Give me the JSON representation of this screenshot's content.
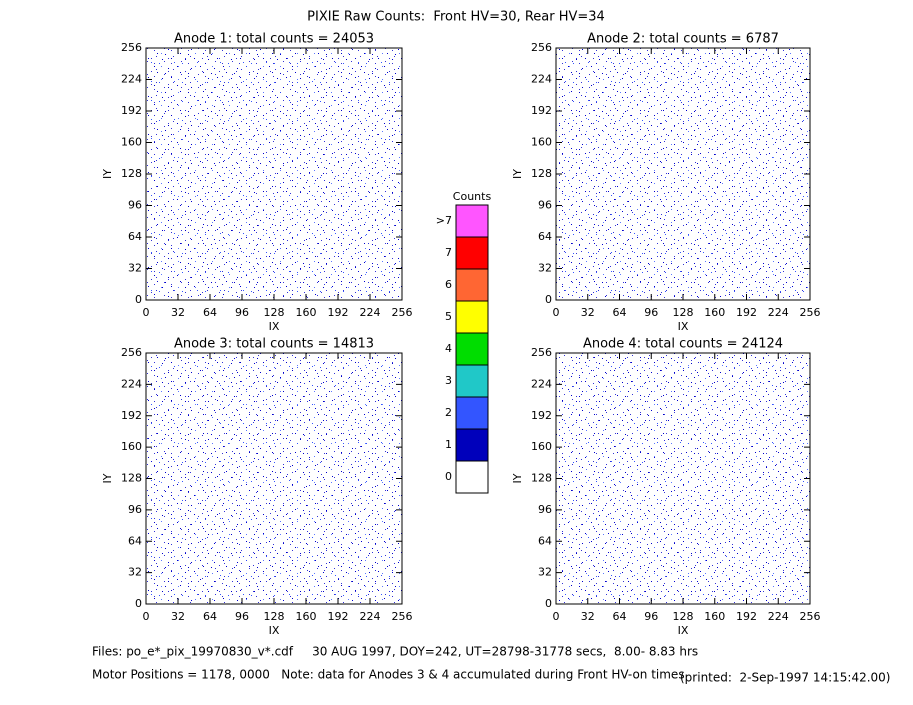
{
  "title": "PIXIE Raw Counts:  Front HV=30, Rear HV=34",
  "chart_data": [
    {
      "type": "heatmap",
      "title": "Anode 1: total counts = 24053",
      "xlabel": "IX",
      "ylabel": "IY",
      "xlim": [
        0,
        256
      ],
      "ylim": [
        0,
        256
      ],
      "xticks": [
        0,
        32,
        64,
        96,
        128,
        160,
        192,
        224,
        256
      ],
      "yticks": [
        0,
        32,
        64,
        96,
        128,
        160,
        192,
        224,
        256
      ]
    },
    {
      "type": "heatmap",
      "title": "Anode 2: total counts = 6787",
      "xlabel": "IX",
      "ylabel": "IY",
      "xlim": [
        0,
        256
      ],
      "ylim": [
        0,
        256
      ],
      "xticks": [
        0,
        32,
        64,
        96,
        128,
        160,
        192,
        224,
        256
      ],
      "yticks": [
        0,
        32,
        64,
        96,
        128,
        160,
        192,
        224,
        256
      ]
    },
    {
      "type": "heatmap",
      "title": "Anode 3: total counts = 14813",
      "xlabel": "IX",
      "ylabel": "IY",
      "xlim": [
        0,
        256
      ],
      "ylim": [
        0,
        256
      ],
      "xticks": [
        0,
        32,
        64,
        96,
        128,
        160,
        192,
        224,
        256
      ],
      "yticks": [
        0,
        32,
        64,
        96,
        128,
        160,
        192,
        224,
        256
      ]
    },
    {
      "type": "heatmap",
      "title": "Anode 4: total counts = 24124",
      "xlabel": "IX",
      "ylabel": "IY",
      "xlim": [
        0,
        256
      ],
      "ylim": [
        0,
        256
      ],
      "xticks": [
        0,
        32,
        64,
        96,
        128,
        160,
        192,
        224,
        256
      ],
      "yticks": [
        0,
        32,
        64,
        96,
        128,
        160,
        192,
        224,
        256
      ]
    }
  ],
  "colorbar": {
    "title": "Counts",
    "labels": [
      "0",
      "1",
      "2",
      "3",
      "4",
      "5",
      "6",
      "7",
      ">7"
    ],
    "colors": [
      "#ffffff",
      "#0000bb",
      "#3355ff",
      "#20c8c8",
      "#00dd00",
      "#ffff00",
      "#ff6633",
      "#ff0000",
      "#ff55ff"
    ]
  },
  "footer": {
    "files": "Files: po_e*_pix_19970830_v*.cdf     30 AUG 1997, DOY=242, UT=28798-31778 secs,  8.00- 8.83 hrs",
    "motor": "Motor Positions = 1178, 0000   Note: data for Anodes 3 & 4 accumulated during Front HV-on times",
    "printed": "(printed:  2-Sep-1997 14:15:42.00)"
  }
}
